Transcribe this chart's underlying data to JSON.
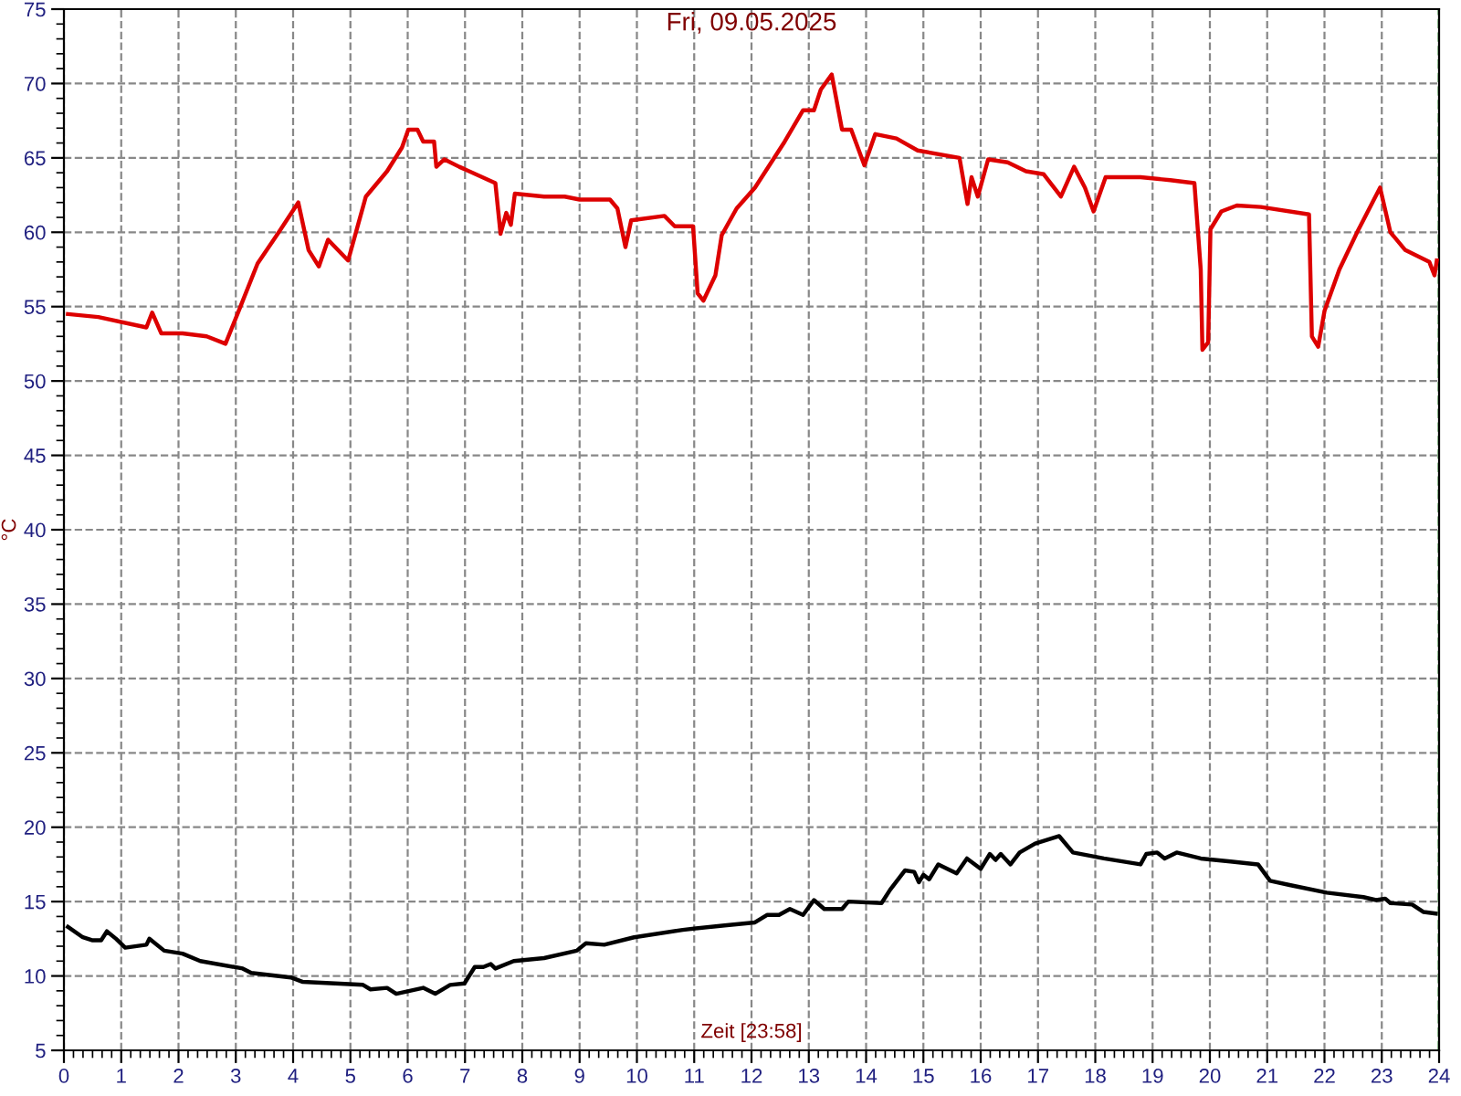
{
  "chart_data": {
    "type": "line",
    "title": "Fri, 09.05.2025",
    "xlabel": "Zeit [23:58]",
    "ylabel": "°C",
    "xlim": [
      0,
      24
    ],
    "xticks": [
      0,
      1,
      2,
      3,
      4,
      5,
      6,
      7,
      8,
      9,
      10,
      11,
      12,
      13,
      14,
      15,
      16,
      17,
      18,
      19,
      20,
      21,
      22,
      23,
      24
    ],
    "ylim": [
      5,
      75
    ],
    "yticks": [
      5,
      10,
      15,
      20,
      25,
      30,
      35,
      40,
      45,
      50,
      55,
      60,
      65,
      70,
      75
    ],
    "grid": true,
    "marker": "none",
    "line_style": "solid",
    "ref_lines": [
      {
        "axis": "x",
        "value": 24,
        "color": "#008000",
        "line_style": "dashed"
      }
    ],
    "series": [
      {
        "color": "#dd0000",
        "x": [
          0.07,
          0.6,
          1.44,
          1.54,
          1.7,
          2.07,
          2.49,
          2.82,
          3.07,
          3.38,
          3.75,
          4.09,
          4.27,
          4.45,
          4.61,
          4.96,
          5.27,
          5.64,
          5.9,
          6.01,
          6.17,
          6.27,
          6.46,
          6.5,
          6.64,
          6.9,
          7.53,
          7.62,
          7.72,
          7.8,
          7.87,
          8.38,
          8.74,
          9.0,
          9.53,
          9.66,
          9.8,
          9.9,
          10.48,
          10.66,
          10.98,
          11.06,
          11.16,
          11.37,
          11.48,
          11.74,
          12.06,
          12.58,
          12.9,
          13.09,
          13.21,
          13.4,
          13.58,
          13.74,
          13.97,
          14.16,
          14.53,
          14.9,
          15.63,
          15.77,
          15.84,
          15.95,
          16.13,
          16.47,
          16.79,
          17.1,
          17.4,
          17.63,
          17.82,
          17.97,
          18.18,
          18.79,
          19.31,
          19.73,
          19.84,
          19.87,
          19.97,
          20.01,
          20.2,
          20.47,
          20.89,
          21.73,
          21.78,
          21.89,
          22.0,
          22.26,
          22.57,
          22.97,
          23.15,
          23.41,
          23.83,
          23.92,
          23.96
        ],
        "values": [
          54.5,
          54.3,
          53.6,
          54.6,
          53.2,
          53.2,
          53.0,
          52.5,
          54.9,
          57.9,
          60.0,
          62.0,
          58.8,
          57.7,
          59.5,
          58.1,
          62.4,
          64.1,
          65.7,
          66.9,
          66.9,
          66.1,
          66.1,
          64.4,
          64.9,
          64.4,
          63.3,
          59.9,
          61.3,
          60.5,
          62.6,
          62.4,
          62.4,
          62.2,
          62.2,
          61.6,
          59.0,
          60.8,
          61.1,
          60.4,
          60.4,
          55.9,
          55.4,
          57.1,
          59.8,
          61.6,
          63.0,
          66.1,
          68.2,
          68.2,
          69.6,
          70.6,
          66.9,
          66.9,
          64.5,
          66.6,
          66.3,
          65.5,
          65.0,
          61.9,
          63.7,
          62.4,
          64.9,
          64.7,
          64.1,
          63.9,
          62.4,
          64.4,
          63.0,
          61.4,
          63.7,
          63.7,
          63.5,
          63.3,
          57.5,
          52.1,
          52.6,
          60.2,
          61.4,
          61.8,
          61.7,
          61.2,
          53.0,
          52.3,
          54.7,
          57.5,
          60.0,
          63.0,
          60.0,
          58.8,
          58.0,
          57.1,
          58.1
        ]
      },
      {
        "color": "#000000",
        "x": [
          0.07,
          0.33,
          0.49,
          0.65,
          0.75,
          0.91,
          1.07,
          1.44,
          1.49,
          1.75,
          2.07,
          2.38,
          3.12,
          3.27,
          3.96,
          4.17,
          5.22,
          5.35,
          5.64,
          5.8,
          6.27,
          6.48,
          6.74,
          6.99,
          7.17,
          7.32,
          7.45,
          7.53,
          7.85,
          8.38,
          8.95,
          9.11,
          9.43,
          9.95,
          10.8,
          11.53,
          12.06,
          12.27,
          12.48,
          12.67,
          12.9,
          13.09,
          13.27,
          13.58,
          13.69,
          14.27,
          14.42,
          14.68,
          14.84,
          14.92,
          15.0,
          15.1,
          15.26,
          15.58,
          15.76,
          16.0,
          16.16,
          16.26,
          16.35,
          16.52,
          16.68,
          16.95,
          17.37,
          17.61,
          18.15,
          18.79,
          18.89,
          19.08,
          19.21,
          19.42,
          19.84,
          20.36,
          20.84,
          21.05,
          21.41,
          22.04,
          22.68,
          22.9,
          23.06,
          23.15,
          23.53,
          23.73,
          23.94
        ],
        "values": [
          13.3,
          12.6,
          12.4,
          12.4,
          13.0,
          12.5,
          11.9,
          12.1,
          12.5,
          11.7,
          11.5,
          11.0,
          10.5,
          10.2,
          9.9,
          9.6,
          9.4,
          9.1,
          9.2,
          8.8,
          9.2,
          8.8,
          9.4,
          9.5,
          10.6,
          10.6,
          10.8,
          10.5,
          11.0,
          11.2,
          11.7,
          12.2,
          12.1,
          12.6,
          13.1,
          13.4,
          13.6,
          14.1,
          14.1,
          14.5,
          14.1,
          15.1,
          14.5,
          14.5,
          15.0,
          14.9,
          15.8,
          17.1,
          17.0,
          16.3,
          16.8,
          16.5,
          17.5,
          16.9,
          17.9,
          17.2,
          18.2,
          17.8,
          18.2,
          17.5,
          18.3,
          18.9,
          19.4,
          18.3,
          17.9,
          17.5,
          18.2,
          18.3,
          17.9,
          18.3,
          17.9,
          17.7,
          17.5,
          16.4,
          16.1,
          15.6,
          15.3,
          15.1,
          15.2,
          14.9,
          14.8,
          14.3,
          14.2
        ]
      }
    ]
  }
}
